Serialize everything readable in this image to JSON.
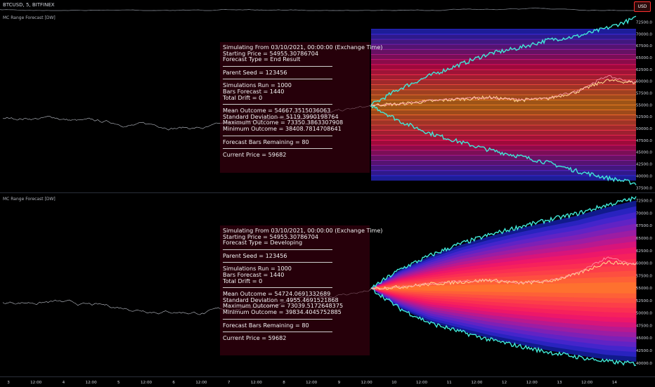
{
  "header": {
    "symbol": "BTCUSD, 5, BITFINEX",
    "currency_badge": "USD"
  },
  "panels": [
    {
      "indicator_label": "MC Range Forecast [DW]",
      "info": {
        "line1": "Simulating From 03/10/2021, 00:00:00 (Exchange Time)",
        "line2": "Starting Price = 54955.30786704",
        "line3": "Forecast Type = End Result",
        "parent_seed": "Parent Seed = 123456",
        "sims": "Simulations Run = 1000",
        "bars": "Bars Forecast = 1440",
        "drift": "Total Drift = 0",
        "mean": "Mean Outcome = 54667.3515036063",
        "sd": "Standard Deviation = 5119.3990198764",
        "max": "Maximum Outcome = 73350.3863307908",
        "min": "Minimum Outcome = 38408.7814708641",
        "remaining": "Forecast Bars Remaining = 80",
        "price": "Current Price = 59682"
      }
    },
    {
      "indicator_label": "MC Range Forecast [DW]",
      "info": {
        "line1": "Simulating From 03/10/2021, 00:00:00 (Exchange Time)",
        "line2": "Starting Price = 54955.30786704",
        "line3": "Forecast Type = Developing",
        "parent_seed": "Parent Seed = 123456",
        "sims": "Simulations Run = 1000",
        "bars": "Bars Forecast = 1440",
        "drift": "Total Drift = 0",
        "mean": "Mean Outcome = 54724.0691332689",
        "sd": "Standard Deviation = 4955.4691521868",
        "max": "Maximum Outcome = 73039.5172648375",
        "min": "Minimum Outcome = 39834.4045752885",
        "remaining": "Forecast Bars Remaining = 80",
        "price": "Current Price = 59682"
      }
    }
  ],
  "chart_data": [
    {
      "type": "line",
      "panel": "top",
      "forecast_type": "End Result",
      "yticks": [
        72500,
        70000,
        67500,
        65000,
        62500,
        60000,
        57500,
        55000,
        52500,
        50000,
        47500,
        45000,
        42500,
        40000,
        37500
      ],
      "ytick_labels": [
        "72500.0",
        "70000.0",
        "67500.0",
        "65000.0",
        "62500.0",
        "60000.0",
        "57500.0",
        "55000.0",
        "52500.0",
        "50000.0",
        "47500.0",
        "45000.0",
        "42500.0",
        "40000.0",
        "37500.0"
      ],
      "ylim": [
        36500,
        74500
      ],
      "xtick_labels": [
        "3",
        "12:00",
        "4",
        "12:00",
        "5",
        "12:00",
        "6",
        "12:00",
        "7",
        "12:00",
        "8",
        "12:00",
        "9",
        "12:00",
        "10",
        "12:00",
        "11",
        "12:00",
        "12",
        "12:00",
        "13",
        "12:00",
        "14"
      ],
      "band_range": [
        39000,
        71000
      ],
      "forecast_start_price": 54955.31,
      "series": [
        {
          "name": "Maximum",
          "color": "#40e8d8",
          "values": [
            54955,
            58500,
            61200,
            63500,
            65800,
            67000,
            68700,
            69500,
            71200,
            73350
          ]
        },
        {
          "name": "Mean",
          "color": "#ffd28a",
          "values": [
            54955,
            55200,
            55800,
            56200,
            56600,
            56000,
            56300,
            57800,
            60200,
            59700
          ]
        },
        {
          "name": "Minimum",
          "color": "#40e8d8",
          "values": [
            54955,
            51500,
            49000,
            47200,
            45500,
            44200,
            42800,
            41000,
            39600,
            38409
          ]
        },
        {
          "name": "Price",
          "color": "#ff9ab0",
          "values": [
            54955,
            55200,
            55900,
            56300,
            56600,
            56100,
            56400,
            57900,
            61100,
            59682
          ]
        }
      ]
    },
    {
      "type": "line",
      "panel": "bottom",
      "forecast_type": "Developing",
      "yticks": [
        72500,
        70000,
        67500,
        65000,
        62500,
        60000,
        57500,
        55000,
        52500,
        50000,
        47500,
        45000,
        42500,
        40000
      ],
      "ytick_labels": [
        "72500.0",
        "70000.0",
        "67500.0",
        "65000.0",
        "62500.0",
        "60000.0",
        "57500.0",
        "55000.0",
        "52500.0",
        "50000.0",
        "47500.0",
        "45000.0",
        "42500.0",
        "40000.0"
      ],
      "ylim": [
        37300,
        74000
      ],
      "forecast_start_price": 54955.31,
      "series": [
        {
          "name": "Maximum",
          "color": "#40e8d8",
          "values": [
            54955,
            58800,
            61500,
            63800,
            65600,
            67200,
            68600,
            69900,
            71600,
            73040
          ]
        },
        {
          "name": "Mean",
          "color": "#ffd28a",
          "values": [
            54955,
            55200,
            55800,
            56200,
            56600,
            56000,
            56300,
            57800,
            60200,
            59700
          ]
        },
        {
          "name": "Minimum",
          "color": "#40e8d8",
          "values": [
            54955,
            50800,
            48000,
            46300,
            44700,
            43400,
            42200,
            41200,
            40300,
            39834
          ]
        },
        {
          "name": "Price",
          "color": "#ff9ab0",
          "values": [
            54955,
            55200,
            55900,
            56300,
            56600,
            56100,
            56400,
            57900,
            61100,
            59682
          ]
        }
      ]
    }
  ],
  "colors": {
    "background": "#000000",
    "max_min_line": "#40e8d8",
    "mean_line": "#ffd28a",
    "price_line": "#ff9ab0",
    "band_outer": "#2030ff",
    "band_mid": "#ff1060",
    "band_inner": "#ff9020"
  }
}
